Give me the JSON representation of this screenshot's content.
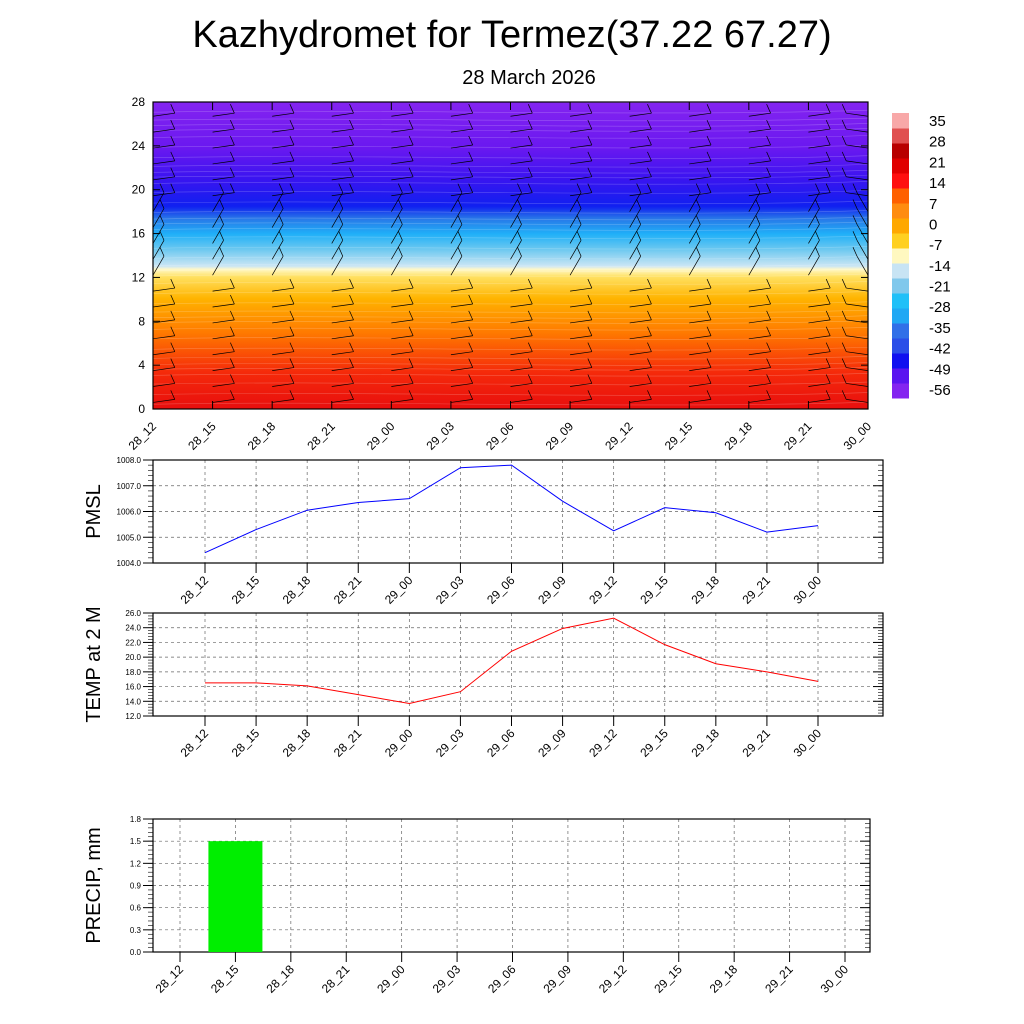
{
  "title": "Kazhydromet for Termez(37.22 67.27)",
  "subtitle": "28 March 2026",
  "chart_data": [
    {
      "type": "heatmap",
      "name": "temperature cross-section with wind barbs",
      "x_labels": [
        "28_12",
        "28_15",
        "28_18",
        "28_21",
        "29_00",
        "29_03",
        "29_06",
        "29_09",
        "29_12",
        "29_15",
        "29_18",
        "29_21",
        "30_00"
      ],
      "y_ticks": [
        "0",
        "4",
        "8",
        "12",
        "16",
        "20",
        "24",
        "28"
      ],
      "ylim": [
        0,
        28
      ],
      "colorbar_labels": [
        "35",
        "28",
        "21",
        "14",
        "7",
        "0",
        "-7",
        "-14",
        "-21",
        "-28",
        "-35",
        "-42",
        "-49",
        "-56"
      ],
      "colorbar_range": [
        -60,
        38
      ]
    },
    {
      "type": "line",
      "ylabel": "PMSL",
      "categories": [
        "28_12",
        "28_15",
        "28_18",
        "28_21",
        "29_00",
        "29_03",
        "29_06",
        "29_09",
        "29_12",
        "29_15",
        "29_18",
        "29_21",
        "30_00"
      ],
      "values": [
        1004.4,
        1005.3,
        1006.05,
        1006.35,
        1006.5,
        1007.7,
        1007.8,
        1006.4,
        1005.25,
        1006.15,
        1005.95,
        1005.2,
        1005.45
      ],
      "y_ticks": [
        "1004.0",
        "1005.0",
        "1006.0",
        "1007.0",
        "1008.0"
      ],
      "ylim": [
        1004,
        1008
      ],
      "color": "#0000ff",
      "grid": true
    },
    {
      "type": "line",
      "ylabel": "TEMP at 2 M",
      "categories": [
        "28_12",
        "28_15",
        "28_18",
        "28_21",
        "29_00",
        "29_03",
        "29_06",
        "29_09",
        "29_12",
        "29_15",
        "29_18",
        "29_21",
        "30_00"
      ],
      "values": [
        16.5,
        16.5,
        16.1,
        14.9,
        13.7,
        15.3,
        20.8,
        23.9,
        25.3,
        21.7,
        19.1,
        18.0,
        16.7
      ],
      "y_ticks": [
        "12.0",
        "14.0",
        "16.0",
        "18.0",
        "20.0",
        "22.0",
        "24.0",
        "26.0"
      ],
      "ylim": [
        12,
        26
      ],
      "color": "#ff0000",
      "grid": true
    },
    {
      "type": "bar",
      "ylabel": "PRECIP, mm",
      "categories": [
        "28_12",
        "28_15",
        "28_18",
        "28_21",
        "29_00",
        "29_03",
        "29_06",
        "29_09",
        "29_12",
        "29_15",
        "29_18",
        "29_21",
        "30_00"
      ],
      "values": [
        0,
        1.5,
        0,
        0,
        0,
        0,
        0,
        0,
        0,
        0,
        0,
        0,
        0
      ],
      "y_ticks": [
        "0.0",
        "0.3",
        "0.6",
        "0.9",
        "1.2",
        "1.5",
        "1.8"
      ],
      "ylim": [
        0,
        1.8
      ],
      "color": "#00ee00",
      "grid": true
    }
  ]
}
